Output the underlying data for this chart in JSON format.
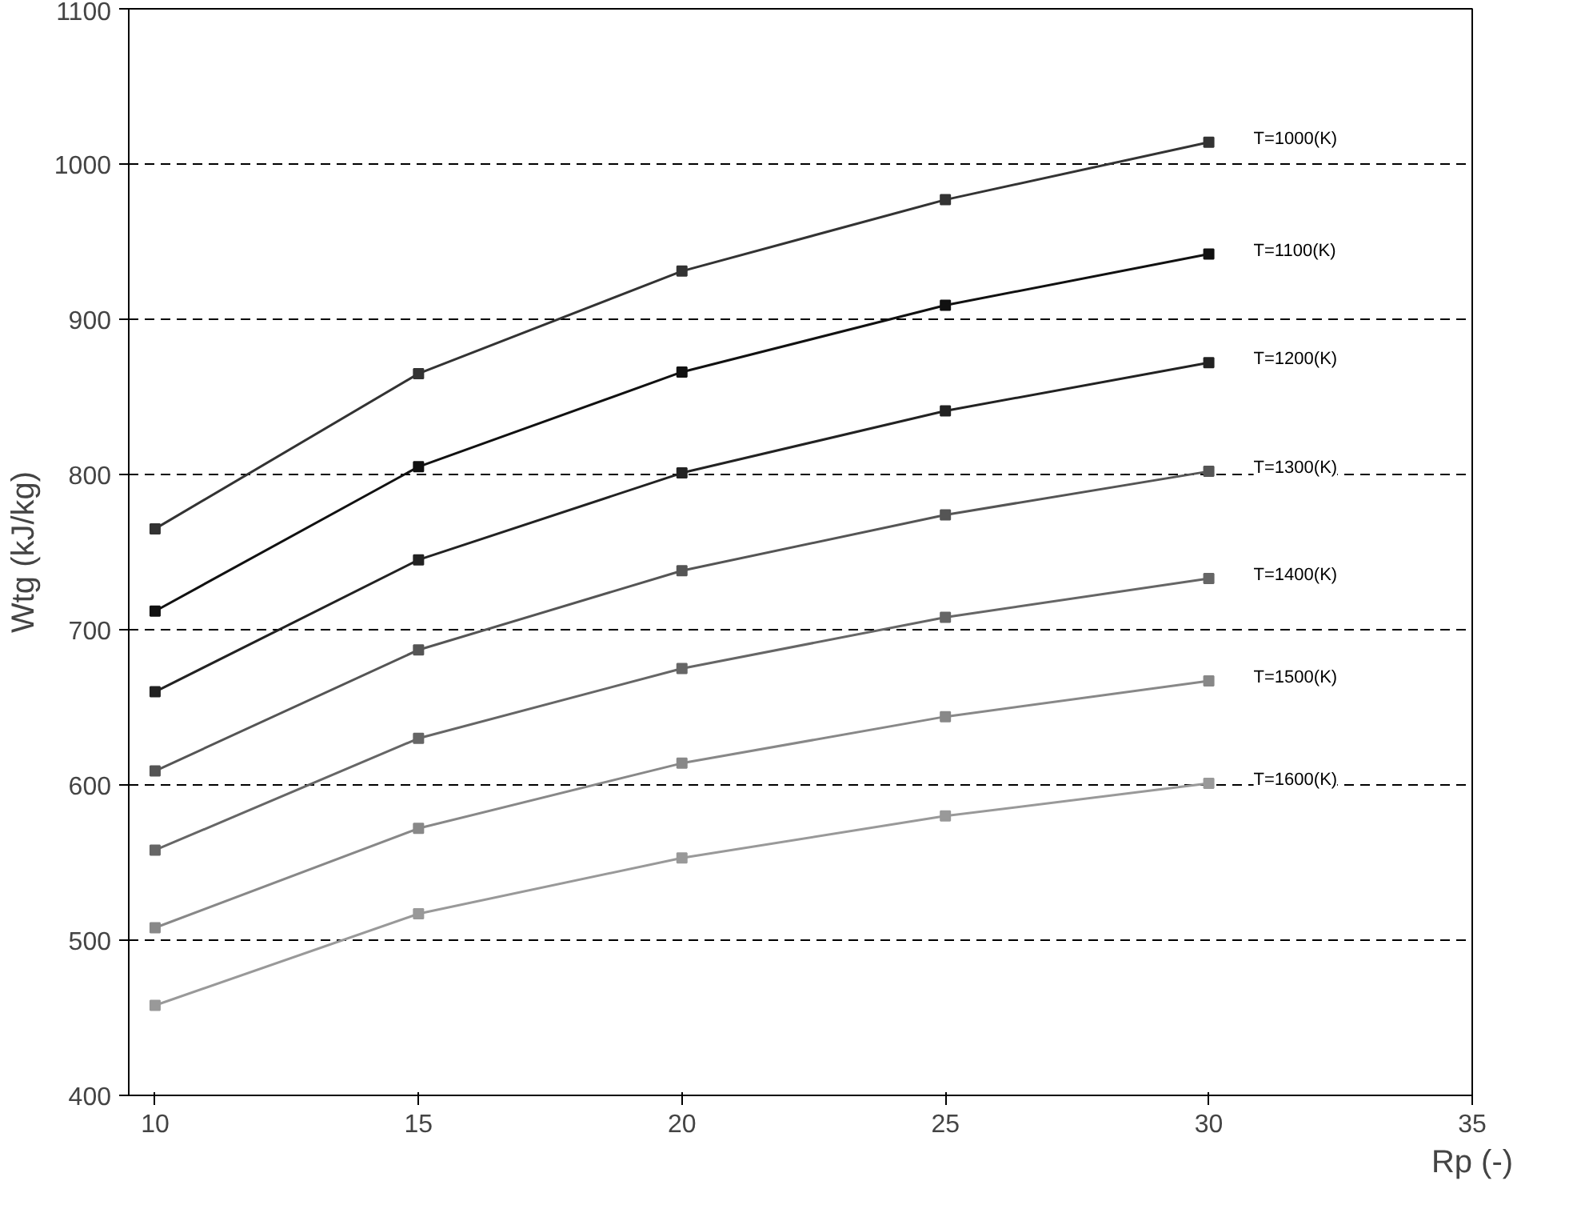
{
  "chart_data": {
    "type": "line",
    "xlabel": "Rp (-)",
    "ylabel": "Wtg (kJ/kg)",
    "x": [
      10,
      15,
      20,
      25,
      30
    ],
    "xlim": [
      9.5,
      35
    ],
    "xticks": [
      10,
      15,
      20,
      25,
      30,
      35
    ],
    "ylim": [
      400,
      1100
    ],
    "yticks": [
      400,
      500,
      600,
      700,
      800,
      900,
      1000,
      1100
    ],
    "grid": "y",
    "marker": "square",
    "line_style": "solid",
    "series": [
      {
        "name": "T=1000(K)",
        "color": "#333333",
        "values": [
          765,
          865,
          931,
          977,
          1014
        ]
      },
      {
        "name": "T=1100(K)",
        "color": "#111111",
        "values": [
          712,
          805,
          866,
          909,
          942
        ]
      },
      {
        "name": "T=1200(K)",
        "color": "#222222",
        "values": [
          660,
          745,
          801,
          841,
          872
        ]
      },
      {
        "name": "T=1300(K)",
        "color": "#555555",
        "values": [
          609,
          687,
          738,
          774,
          802
        ]
      },
      {
        "name": "T=1400(K)",
        "color": "#666666",
        "values": [
          558,
          630,
          675,
          708,
          733
        ]
      },
      {
        "name": "T=1500(K)",
        "color": "#888888",
        "values": [
          508,
          572,
          614,
          644,
          667
        ]
      },
      {
        "name": "T=1600(K)",
        "color": "#999999",
        "values": [
          458,
          517,
          553,
          580,
          601
        ]
      }
    ]
  }
}
